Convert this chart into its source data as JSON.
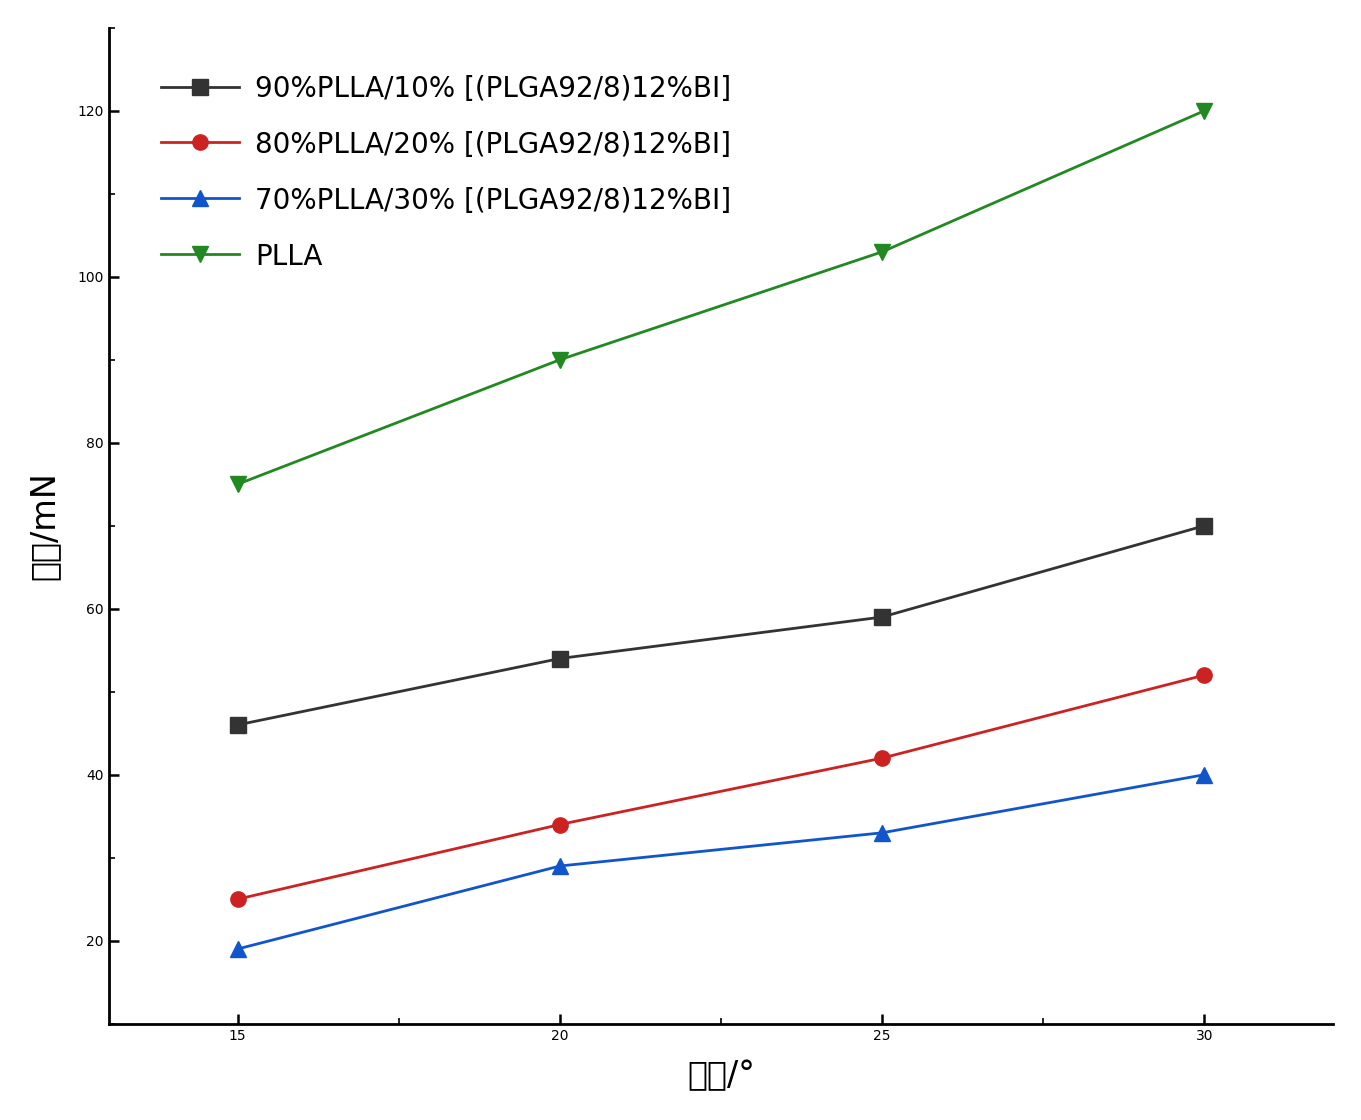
{
  "x": [
    15,
    20,
    25,
    30
  ],
  "series": [
    {
      "label": "90%PLLA/10% [(PLGA92/8)12%BI]",
      "color": "#333333",
      "marker": "s",
      "marker_color": "#333333",
      "values": [
        46,
        54,
        59,
        70
      ]
    },
    {
      "label": "80%PLLA/20% [(PLGA92/8)12%BI]",
      "color": "#cc2222",
      "marker": "o",
      "marker_color": "#cc2222",
      "values": [
        25,
        34,
        42,
        52
      ]
    },
    {
      "label": "70%PLLA/30% [(PLGA92/8)12%BI]",
      "color": "#1155cc",
      "marker": "^",
      "marker_color": "#1155cc",
      "values": [
        19,
        29,
        33,
        40
      ]
    },
    {
      "label": "PLLA",
      "color": "#228822",
      "marker": "v",
      "marker_color": "#228822",
      "values": [
        75,
        90,
        103,
        120
      ]
    }
  ],
  "xlabel": "角度/°",
  "ylabel": "力値/mN",
  "xlim": [
    13,
    32
  ],
  "ylim": [
    10,
    130
  ],
  "xticks": [
    15,
    20,
    25,
    30
  ],
  "yticks": [
    20,
    40,
    60,
    80,
    100,
    120
  ],
  "xlabel_fontsize": 24,
  "ylabel_fontsize": 24,
  "tick_fontsize": 22,
  "legend_fontsize": 20,
  "line_width": 2.0,
  "marker_size": 11
}
